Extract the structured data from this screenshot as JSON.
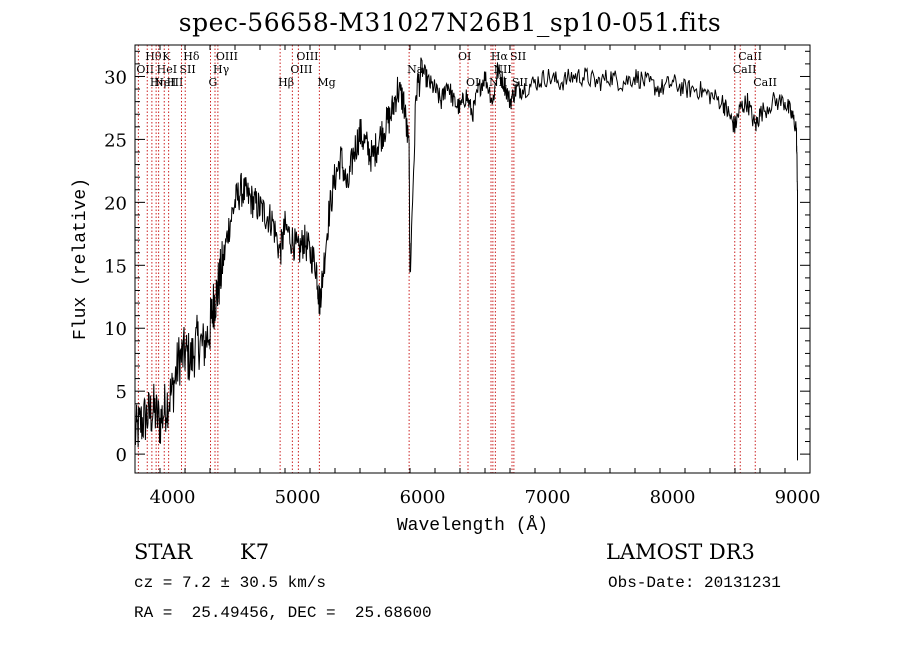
{
  "chart_data": {
    "type": "line",
    "title": "spec-56658-M31027N26B1_sp10-051.fits",
    "xlabel": "Wavelength (Å)",
    "ylabel": "Flux (relative)",
    "xlim": [
      3700,
      9100
    ],
    "ylim": [
      -1.5,
      32.5
    ],
    "xticks": [
      4000,
      5000,
      6000,
      7000,
      8000,
      9000
    ],
    "yticks": [
      0,
      5,
      10,
      15,
      20,
      25,
      30
    ],
    "series": [
      {
        "name": "flux",
        "x": [
          3700,
          3750,
          3800,
          3850,
          3900,
          3950,
          4000,
          4050,
          4100,
          4150,
          4200,
          4250,
          4300,
          4330,
          4360,
          4400,
          4450,
          4500,
          4550,
          4600,
          4650,
          4700,
          4750,
          4800,
          4861,
          4900,
          4959,
          5007,
          5050,
          5100,
          5150,
          5175,
          5200,
          5250,
          5300,
          5350,
          5400,
          5450,
          5500,
          5550,
          5600,
          5650,
          5700,
          5750,
          5800,
          5850,
          5893,
          5900,
          5950,
          6000,
          6050,
          6100,
          6150,
          6200,
          6250,
          6300,
          6350,
          6400,
          6450,
          6500,
          6563,
          6600,
          6650,
          6700,
          6750,
          6800,
          6900,
          7000,
          7100,
          7200,
          7300,
          7400,
          7500,
          7600,
          7700,
          7800,
          7900,
          8000,
          8100,
          8200,
          8300,
          8400,
          8450,
          8498,
          8542,
          8600,
          8662,
          8700,
          8800,
          8900,
          8950,
          8990,
          9000
        ],
        "y": [
          1.5,
          2.5,
          3.0,
          3.5,
          2.5,
          4.0,
          5.0,
          7.5,
          8.0,
          7.5,
          9.0,
          8.5,
          10.0,
          12.0,
          13.0,
          15.0,
          18.0,
          20.0,
          21.0,
          20.5,
          20.0,
          19.5,
          19.0,
          18.5,
          16.0,
          18.0,
          17.0,
          16.0,
          17.0,
          16.0,
          15.0,
          12.0,
          14.0,
          19.0,
          22.0,
          23.5,
          21.0,
          24.0,
          25.5,
          24.5,
          23.5,
          25.0,
          26.0,
          27.0,
          29.0,
          28.0,
          24.0,
          14.0,
          29.0,
          30.5,
          29.5,
          29.0,
          28.0,
          29.5,
          28.0,
          27.5,
          28.5,
          27.0,
          29.0,
          30.0,
          28.0,
          30.5,
          29.5,
          28.0,
          29.0,
          29.0,
          29.5,
          30.0,
          29.5,
          30.0,
          30.0,
          29.5,
          30.0,
          29.5,
          30.0,
          29.5,
          29.0,
          29.5,
          29.0,
          29.0,
          28.5,
          28.0,
          27.0,
          26.0,
          27.5,
          28.0,
          26.0,
          27.0,
          28.0,
          28.0,
          27.0,
          26.0,
          21.0
        ]
      }
    ],
    "lines": [
      {
        "w": 3727,
        "label": "OII",
        "row": 1
      },
      {
        "w": 3798,
        "label": "Hθ",
        "row": 0
      },
      {
        "w": 3835,
        "label": "Hη",
        "row": 2
      },
      {
        "w": 3869,
        "label": "NeIII",
        "row": 2
      },
      {
        "w": 3889,
        "label": "HeI",
        "row": 1
      },
      {
        "w": 3934,
        "label": "K",
        "row": 0
      },
      {
        "w": 3969,
        "label": "H",
        "row": 2
      },
      {
        "w": 4072,
        "label": "SII",
        "row": 1
      },
      {
        "w": 4102,
        "label": "Hδ",
        "row": 0
      },
      {
        "w": 4304,
        "label": "G",
        "row": 2
      },
      {
        "w": 4340,
        "label": "Hγ",
        "row": 1
      },
      {
        "w": 4363,
        "label": "OIII",
        "row": 0
      },
      {
        "w": 4861,
        "label": "Hβ",
        "row": 2
      },
      {
        "w": 4959,
        "label": "OIII",
        "row": 1
      },
      {
        "w": 5007,
        "label": "OIII",
        "row": 0
      },
      {
        "w": 5175,
        "label": "Mg",
        "row": 2
      },
      {
        "w": 5893,
        "label": "Na",
        "row": 1
      },
      {
        "w": 6300,
        "label": "OI",
        "row": 0
      },
      {
        "w": 6364,
        "label": "OI",
        "row": 2
      },
      {
        "w": 6548,
        "label": "NII",
        "row": 2
      },
      {
        "w": 6563,
        "label": "Hα",
        "row": 0
      },
      {
        "w": 6583,
        "label": "NII",
        "row": 1
      },
      {
        "w": 6716,
        "label": "SII",
        "row": 0
      },
      {
        "w": 6731,
        "label": "SII",
        "row": 2
      },
      {
        "w": 8498,
        "label": "CaII",
        "row": 1
      },
      {
        "w": 8542,
        "label": "CaII",
        "row": 0
      },
      {
        "w": 8662,
        "label": "CaII",
        "row": 2
      }
    ],
    "line_color": "#cc2222"
  },
  "info": {
    "object_class": "STAR",
    "subclass": "K7",
    "survey": "LAMOST DR3",
    "redshift": "cz = 7.2 ± 30.5 km/s",
    "obs_date": "Obs-Date: 20131231",
    "coords": "RA =  25.49456, DEC =  25.68600"
  }
}
